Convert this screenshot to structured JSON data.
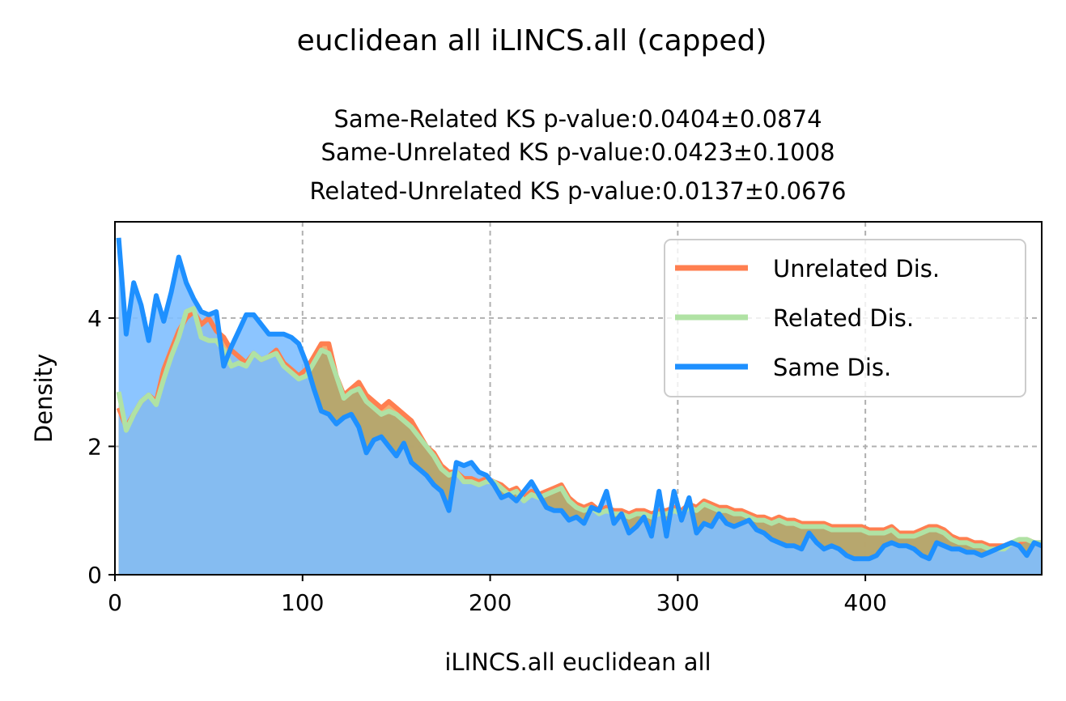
{
  "chart_data": {
    "type": "area",
    "suptitle": "euclidean all iLINCS.all (capped)",
    "subtitle_lines": [
      "Same-Related KS p-value:0.0404±0.0874",
      "Same-Unrelated KS p-value:0.0423±0.1008",
      "Related-Unrelated KS p-value:0.0137±0.0676"
    ],
    "xlabel": "iLINCS.all euclidean all",
    "ylabel": "Density",
    "xlim": [
      0,
      494
    ],
    "ylim": [
      0,
      5.5
    ],
    "xticks": [
      0,
      100,
      200,
      300,
      400
    ],
    "yticks": [
      0,
      2,
      4
    ],
    "grid": true,
    "legend_position": "upper right",
    "series": [
      {
        "name": "Unrelated Dis.",
        "color": "#ff7f50",
        "fill": "#f4a460",
        "x": [
          2,
          6,
          10,
          14,
          18,
          22,
          26,
          30,
          34,
          38,
          42,
          46,
          50,
          54,
          58,
          62,
          66,
          70,
          74,
          78,
          82,
          86,
          90,
          94,
          98,
          102,
          106,
          110,
          114,
          118,
          122,
          126,
          130,
          134,
          138,
          142,
          146,
          150,
          154,
          158,
          162,
          166,
          170,
          174,
          178,
          182,
          186,
          190,
          194,
          198,
          202,
          206,
          210,
          214,
          218,
          222,
          226,
          230,
          234,
          238,
          242,
          246,
          250,
          254,
          258,
          262,
          266,
          270,
          274,
          278,
          282,
          286,
          290,
          294,
          298,
          302,
          306,
          310,
          314,
          318,
          322,
          326,
          330,
          334,
          338,
          342,
          346,
          350,
          354,
          358,
          362,
          366,
          370,
          374,
          378,
          382,
          386,
          390,
          394,
          398,
          402,
          406,
          410,
          414,
          418,
          422,
          426,
          430,
          434,
          438,
          442,
          446,
          450,
          454,
          458,
          462,
          466,
          470,
          474,
          478,
          482,
          486,
          490,
          494
        ],
        "y": [
          2.6,
          2.3,
          2.5,
          2.7,
          2.8,
          2.7,
          3.2,
          3.5,
          3.8,
          4.0,
          4.1,
          3.9,
          4.0,
          3.8,
          3.7,
          3.5,
          3.4,
          3.3,
          3.45,
          3.35,
          3.4,
          3.5,
          3.3,
          3.2,
          3.1,
          3.2,
          3.4,
          3.6,
          3.6,
          3.1,
          2.8,
          2.9,
          3.0,
          2.8,
          2.7,
          2.6,
          2.7,
          2.6,
          2.5,
          2.4,
          2.2,
          2.0,
          1.9,
          1.7,
          1.6,
          1.6,
          1.5,
          1.5,
          1.45,
          1.5,
          1.45,
          1.4,
          1.3,
          1.35,
          1.2,
          1.3,
          1.25,
          1.3,
          1.35,
          1.4,
          1.2,
          1.1,
          1.05,
          1.1,
          1.0,
          1.05,
          1.0,
          1.0,
          0.95,
          1.0,
          1.0,
          0.95,
          1.0,
          1.0,
          1.05,
          1.0,
          1.1,
          1.05,
          1.15,
          1.1,
          1.05,
          1.05,
          1.0,
          1.0,
          0.95,
          0.9,
          0.9,
          0.85,
          0.9,
          0.85,
          0.85,
          0.8,
          0.8,
          0.8,
          0.8,
          0.75,
          0.75,
          0.75,
          0.75,
          0.75,
          0.7,
          0.7,
          0.7,
          0.75,
          0.65,
          0.65,
          0.65,
          0.7,
          0.75,
          0.75,
          0.7,
          0.6,
          0.55,
          0.55,
          0.5,
          0.5,
          0.45,
          0.45,
          0.45,
          0.5,
          0.5,
          0.55,
          0.5,
          0.5
        ]
      },
      {
        "name": "Related Dis.",
        "color": "#b0e2a4",
        "fill": "#b0a66e",
        "x": [
          2,
          6,
          10,
          14,
          18,
          22,
          26,
          30,
          34,
          38,
          42,
          46,
          50,
          54,
          58,
          62,
          66,
          70,
          74,
          78,
          82,
          86,
          90,
          94,
          98,
          102,
          106,
          110,
          114,
          118,
          122,
          126,
          130,
          134,
          138,
          142,
          146,
          150,
          154,
          158,
          162,
          166,
          170,
          174,
          178,
          182,
          186,
          190,
          194,
          198,
          202,
          206,
          210,
          214,
          218,
          222,
          226,
          230,
          234,
          238,
          242,
          246,
          250,
          254,
          258,
          262,
          266,
          270,
          274,
          278,
          282,
          286,
          290,
          294,
          298,
          302,
          306,
          310,
          314,
          318,
          322,
          326,
          330,
          334,
          338,
          342,
          346,
          350,
          354,
          358,
          362,
          366,
          370,
          374,
          378,
          382,
          386,
          390,
          394,
          398,
          402,
          406,
          410,
          414,
          418,
          422,
          426,
          430,
          434,
          438,
          442,
          446,
          450,
          454,
          458,
          462,
          466,
          470,
          474,
          478,
          482,
          486,
          490,
          494
        ],
        "y": [
          2.85,
          2.25,
          2.5,
          2.7,
          2.8,
          2.65,
          3.05,
          3.4,
          3.7,
          4.1,
          4.15,
          3.7,
          3.65,
          3.65,
          3.5,
          3.25,
          3.3,
          3.25,
          3.45,
          3.35,
          3.4,
          3.45,
          3.25,
          3.15,
          3.05,
          3.1,
          3.3,
          3.5,
          3.45,
          3.1,
          2.75,
          2.85,
          2.9,
          2.7,
          2.6,
          2.5,
          2.55,
          2.5,
          2.4,
          2.3,
          2.15,
          2.0,
          1.85,
          1.65,
          1.55,
          1.6,
          1.45,
          1.45,
          1.4,
          1.45,
          1.45,
          1.35,
          1.25,
          1.3,
          1.15,
          1.25,
          1.2,
          1.25,
          1.3,
          1.35,
          1.15,
          1.05,
          1.0,
          1.05,
          0.95,
          1.0,
          0.95,
          0.95,
          0.9,
          0.95,
          0.95,
          0.9,
          0.95,
          0.95,
          1.0,
          0.95,
          1.05,
          1.0,
          1.1,
          1.05,
          1.0,
          1.0,
          0.95,
          0.95,
          0.9,
          0.85,
          0.85,
          0.8,
          0.85,
          0.8,
          0.8,
          0.75,
          0.75,
          0.75,
          0.75,
          0.7,
          0.7,
          0.7,
          0.7,
          0.7,
          0.65,
          0.65,
          0.65,
          0.7,
          0.6,
          0.6,
          0.6,
          0.65,
          0.7,
          0.7,
          0.65,
          0.55,
          0.5,
          0.5,
          0.45,
          0.45,
          0.4,
          0.4,
          0.4,
          0.5,
          0.55,
          0.55,
          0.5,
          0.5
        ]
      },
      {
        "name": "Same Dis.",
        "color": "#1e90ff",
        "fill": "#7fbfff",
        "x": [
          2,
          6,
          10,
          14,
          18,
          22,
          26,
          30,
          34,
          38,
          42,
          46,
          50,
          54,
          58,
          62,
          66,
          70,
          74,
          78,
          82,
          86,
          90,
          94,
          98,
          102,
          106,
          110,
          114,
          118,
          122,
          126,
          130,
          134,
          138,
          142,
          146,
          150,
          154,
          158,
          162,
          166,
          170,
          174,
          178,
          182,
          186,
          190,
          194,
          198,
          202,
          206,
          210,
          214,
          218,
          222,
          226,
          230,
          234,
          238,
          242,
          246,
          250,
          254,
          258,
          262,
          266,
          270,
          274,
          278,
          282,
          286,
          290,
          294,
          298,
          302,
          306,
          310,
          314,
          318,
          322,
          326,
          330,
          334,
          338,
          342,
          346,
          350,
          354,
          358,
          362,
          366,
          370,
          374,
          378,
          382,
          386,
          390,
          394,
          398,
          402,
          406,
          410,
          414,
          418,
          422,
          426,
          430,
          434,
          438,
          442,
          446,
          450,
          454,
          458,
          462,
          466,
          470,
          474,
          478,
          482,
          486,
          490,
          494
        ],
        "y": [
          5.25,
          3.75,
          4.55,
          4.2,
          3.65,
          4.35,
          3.95,
          4.4,
          4.95,
          4.55,
          4.3,
          4.1,
          4.05,
          4.1,
          3.25,
          3.55,
          3.8,
          4.05,
          4.05,
          3.9,
          3.75,
          3.75,
          3.75,
          3.7,
          3.6,
          3.3,
          2.9,
          2.55,
          2.5,
          2.35,
          2.45,
          2.5,
          2.3,
          1.9,
          2.1,
          2.15,
          2.0,
          1.85,
          2.05,
          1.75,
          1.65,
          1.55,
          1.4,
          1.3,
          1.0,
          1.75,
          1.7,
          1.75,
          1.6,
          1.55,
          1.4,
          1.2,
          1.25,
          1.15,
          1.3,
          1.45,
          1.25,
          1.05,
          1.0,
          1.0,
          0.85,
          0.9,
          0.8,
          1.05,
          1.0,
          1.3,
          0.8,
          0.95,
          0.65,
          0.75,
          0.9,
          0.6,
          1.3,
          0.6,
          1.3,
          0.85,
          1.2,
          0.65,
          0.8,
          0.75,
          0.95,
          0.8,
          0.75,
          0.8,
          0.85,
          0.7,
          0.65,
          0.55,
          0.5,
          0.45,
          0.45,
          0.4,
          0.65,
          0.5,
          0.4,
          0.45,
          0.4,
          0.3,
          0.25,
          0.25,
          0.25,
          0.3,
          0.45,
          0.5,
          0.45,
          0.45,
          0.4,
          0.3,
          0.25,
          0.5,
          0.45,
          0.4,
          0.4,
          0.35,
          0.35,
          0.3,
          0.35,
          0.4,
          0.45,
          0.5,
          0.45,
          0.3,
          0.5,
          0.45
        ]
      }
    ]
  }
}
